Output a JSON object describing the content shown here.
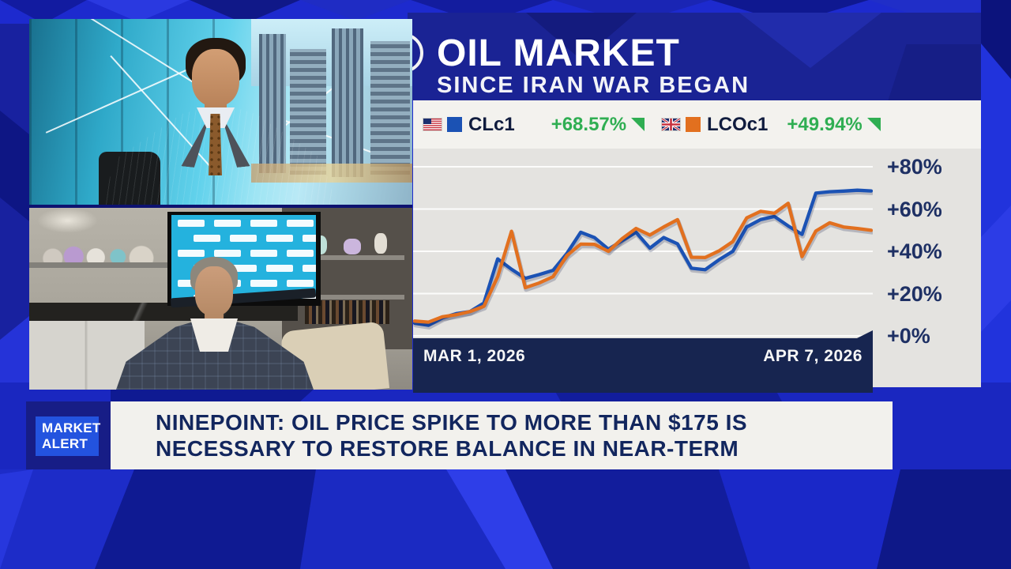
{
  "header": {
    "title": "OIL MARKET",
    "subtitle": "SINCE IRAN WAR BEGAN"
  },
  "legend": {
    "items": [
      {
        "flag": "us-flag",
        "symbol": "CLc1",
        "change": "+68.57%",
        "direction": "down-right-triangle"
      },
      {
        "flag": "uk-flag",
        "symbol": "LCOc1",
        "change": "+49.94%",
        "direction": "down-right-triangle"
      }
    ]
  },
  "chart_data": {
    "type": "line",
    "title": "OIL MARKET",
    "subtitle": "SINCE IRAN WAR BEGAN",
    "x_range_labels": [
      "MAR 1, 2026",
      "APR 7, 2026"
    ],
    "yticks": [
      {
        "value": 80,
        "label": "+80%"
      },
      {
        "value": 60,
        "label": "+60%"
      },
      {
        "value": 40,
        "label": "+40%"
      },
      {
        "value": 20,
        "label": "+20%"
      },
      {
        "value": 0,
        "label": "+0%"
      }
    ],
    "ylim": [
      0,
      88.6
    ],
    "grid": true,
    "legend_position": "top",
    "series": [
      {
        "name": "CLc1",
        "color": "#1b52b4",
        "change_label": "+68.57%",
        "values": [
          6,
          5,
          8.5,
          10.5,
          11.5,
          15.5,
          36.4,
          31.5,
          27.2,
          29,
          31,
          39,
          49,
          46.5,
          41,
          45,
          49,
          41.5,
          46.5,
          43.5,
          32,
          31.3,
          36,
          40,
          51.5,
          55,
          56.5,
          52,
          48,
          67.5,
          68.2,
          68.5,
          68.9,
          68.57
        ]
      },
      {
        "name": "LCOc1",
        "color": "#e2701f",
        "change_label": "+49.94%",
        "values": [
          7,
          6.5,
          9,
          10,
          11.5,
          14,
          28,
          49.5,
          22.8,
          25,
          28,
          38,
          43.4,
          43.3,
          40,
          46,
          50.8,
          47.7,
          51.5,
          55,
          37.2,
          37.1,
          40.2,
          44.6,
          55.8,
          58.9,
          58,
          62.7,
          37.5,
          49.6,
          53.5,
          51.5,
          50.8,
          49.94
        ]
      }
    ]
  },
  "ticker": {
    "badge": [
      "MARKET",
      "ALERT"
    ],
    "headline": [
      "NINEPOINT: OIL PRICE SPIKE TO MORE THAN $175 IS",
      "NECESSARY TO RESTORE BALANCE IN NEAR-TERM"
    ]
  },
  "colors": {
    "gain_green": "#2fae52",
    "badge_blue": "#2353df",
    "date_band_navy": "#172550",
    "headline_navy": "#12265e",
    "clc1_blue": "#1b52b4",
    "lcoc1_orange": "#e2701f"
  }
}
